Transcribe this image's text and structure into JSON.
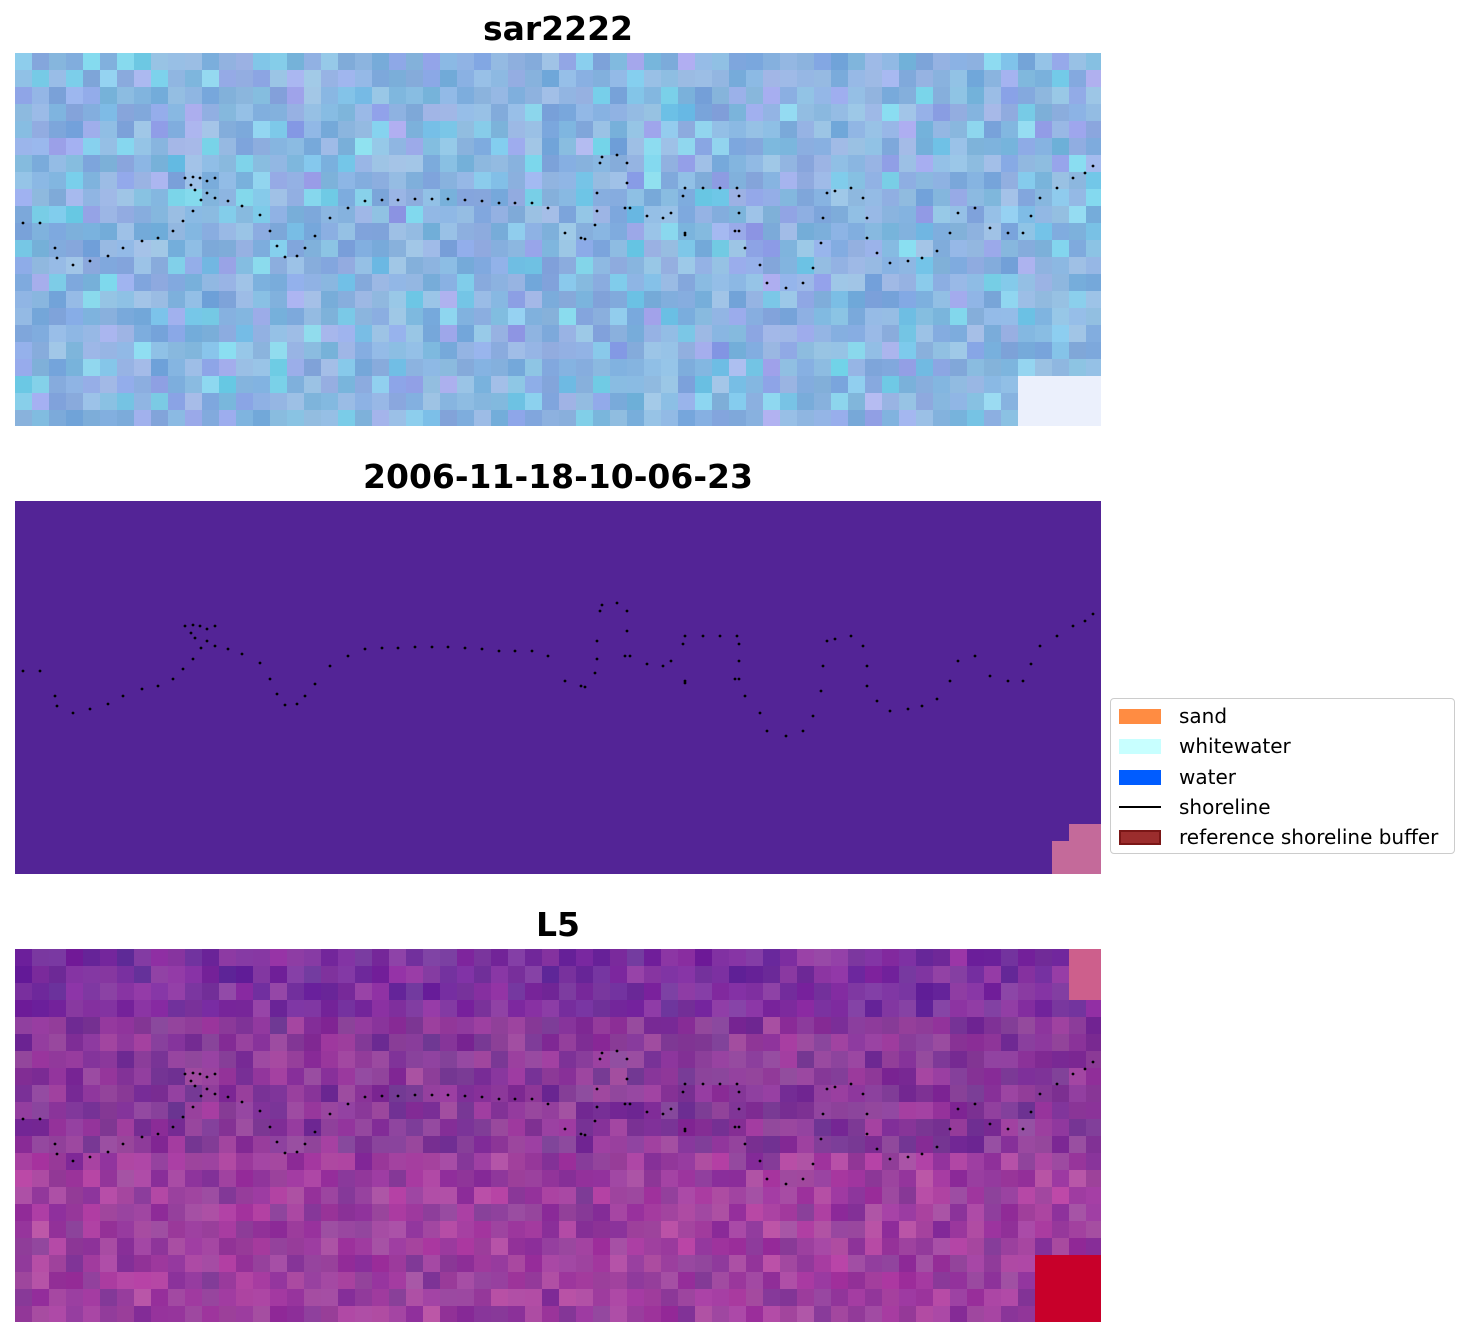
{
  "panels": [
    {
      "title": "sar2222"
    },
    {
      "title": "2006-11-18-10-06-23"
    },
    {
      "title": "L5"
    }
  ],
  "legend": {
    "items": [
      {
        "label": "sand",
        "color": "#ff8c42",
        "kind": "patch"
      },
      {
        "label": "whitewater",
        "color": "#c8ffff",
        "kind": "patch"
      },
      {
        "label": "water",
        "color": "#005cff",
        "kind": "patch"
      },
      {
        "label": "shoreline",
        "color": "#000000",
        "kind": "line"
      },
      {
        "label": "reference shoreline buffer",
        "color": "#9b2d2d",
        "kind": "patch",
        "edge": "#7a1616"
      }
    ]
  },
  "colors": {
    "panel_sar2222_base": "#8ab4e0",
    "panel_classified_base": "#532496",
    "panel_classified_corner": "#c46a9a",
    "panel_l5_base": "#8a3a9a",
    "panel_l5_corner": "#c8002a",
    "shoreline_dots": "#000000"
  }
}
